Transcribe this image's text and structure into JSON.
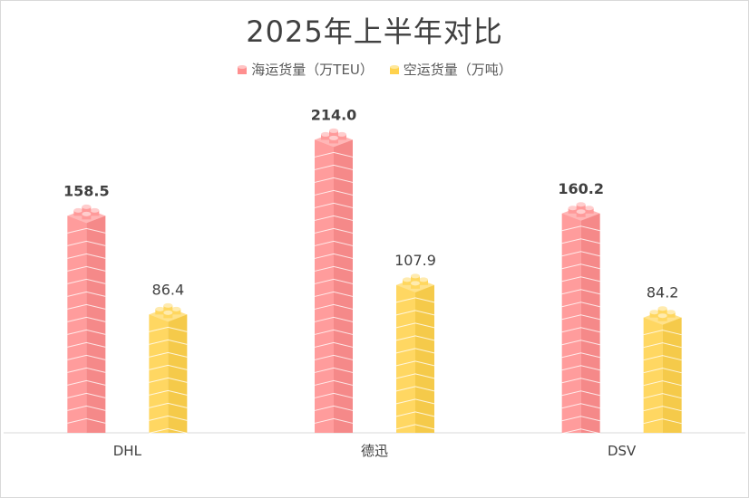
{
  "chart_data": {
    "type": "bar",
    "title": "2025年上半年对比",
    "categories": [
      "DHL",
      "德迅",
      "DSV"
    ],
    "series": [
      {
        "name": "海运货量（万TEU）",
        "values": [
          158.5,
          214.0,
          160.2
        ],
        "color": "#ff8f8f",
        "label_bold": true
      },
      {
        "name": "空运货量（万吨）",
        "values": [
          86.4,
          107.9,
          84.2
        ],
        "color": "#ffd24d",
        "label_bold": false
      }
    ],
    "ylim": [
      0,
      250
    ],
    "grid": false,
    "legend_position": "top-center",
    "xlabel": "",
    "ylabel": ""
  }
}
